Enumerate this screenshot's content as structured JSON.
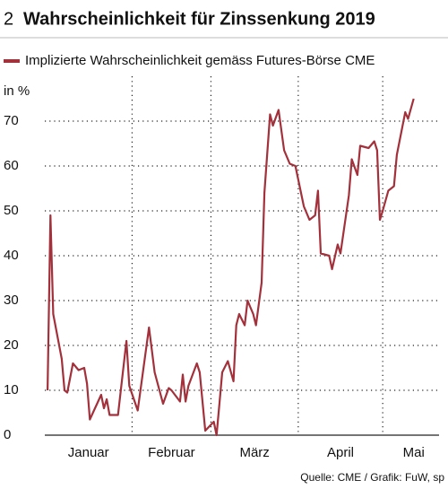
{
  "chart_data": {
    "type": "line",
    "number": "2",
    "title": "Wahrscheinlichkeit für Zinssenkung 2019",
    "y_label": "in %",
    "source": "Quelle: CME / Grafik: FuW, sp",
    "x": [
      1,
      2,
      3,
      6,
      7,
      8,
      10,
      12,
      14,
      15,
      16,
      20,
      21,
      22,
      23,
      26,
      29,
      30,
      33,
      37,
      39,
      42,
      44,
      45,
      48,
      49,
      50,
      51,
      54,
      55,
      57,
      60,
      61,
      62,
      63,
      65,
      67,
      68,
      69,
      71,
      72,
      74,
      75,
      77,
      78,
      80,
      81,
      83,
      85,
      87,
      89,
      92,
      94,
      96,
      97,
      98,
      101,
      102,
      104,
      105,
      108,
      109,
      111,
      112,
      115,
      117,
      118,
      119,
      120,
      122,
      124,
      125,
      128,
      129,
      131
    ],
    "series": [
      {
        "name": "Implizierte Wahrscheinlichkeit gemäss Futures-Börse CME",
        "color": "#a3313b",
        "values": [
          10,
          49,
          27,
          17,
          10,
          9.5,
          16,
          14.5,
          15,
          11.5,
          3.5,
          9,
          6,
          8,
          4.5,
          4.5,
          21,
          11,
          5.5,
          24,
          14,
          7,
          10.5,
          10,
          7.5,
          13.5,
          7.5,
          11,
          16,
          14,
          1,
          3,
          0,
          7,
          14,
          16.5,
          12,
          24.5,
          27,
          24.5,
          30,
          27,
          24.5,
          34,
          54,
          71.5,
          69,
          72.5,
          63.5,
          60.5,
          60,
          51,
          48,
          49,
          54.5,
          40.5,
          40,
          37,
          42.5,
          40.5,
          53.5,
          61.5,
          58,
          64.5,
          64,
          65.5,
          63.5,
          48,
          50,
          54.5,
          55.5,
          62.5,
          72,
          70.5,
          75
        ]
      }
    ],
    "xlim": [
      0,
      140
    ],
    "xgrid": [
      31,
      59,
      90,
      120
    ],
    "xticks": [
      {
        "value": 15.5,
        "label": "Januar"
      },
      {
        "value": 45,
        "label": "Februar"
      },
      {
        "value": 74.5,
        "label": "März"
      },
      {
        "value": 105,
        "label": "April"
      },
      {
        "value": 131,
        "label": "Mai"
      }
    ],
    "ylim": [
      0,
      80
    ],
    "yticks": [
      0,
      10,
      20,
      30,
      40,
      50,
      60,
      70
    ],
    "grid": true
  }
}
